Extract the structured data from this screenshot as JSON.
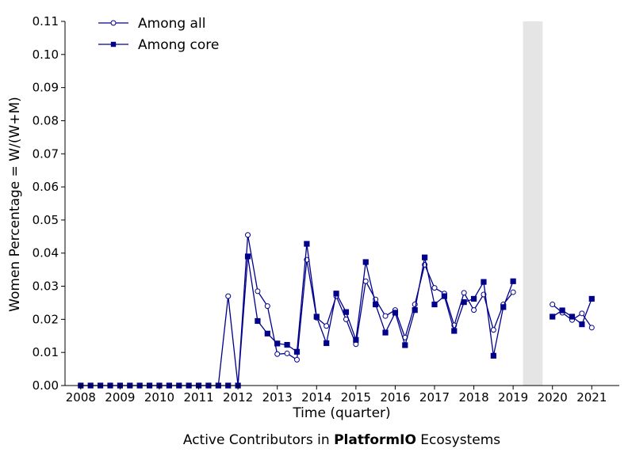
{
  "caption": {
    "prefix": "Active Contributors in ",
    "project": "PlatformIO",
    "suffix": " Ecosystems"
  },
  "chart_data": {
    "type": "line",
    "xlabel": "Time (quarter)",
    "ylabel": "Women Percentage = W/(W+M)",
    "xlim": [
      2007.6,
      2021.7
    ],
    "ylim": [
      0,
      0.11
    ],
    "x_ticks": [
      2008,
      2009,
      2010,
      2011,
      2012,
      2013,
      2014,
      2015,
      2016,
      2017,
      2018,
      2019,
      2020,
      2021
    ],
    "y_ticks": [
      0.0,
      0.01,
      0.02,
      0.03,
      0.04,
      0.05,
      0.06,
      0.07,
      0.08,
      0.09,
      0.1,
      0.11
    ],
    "shaded_span": [
      2019.25,
      2019.75
    ],
    "grid": false,
    "legend_position": "top-left",
    "line_color": "#00008b",
    "shade_color": "#e5e5e5",
    "series": [
      {
        "name": "Among all",
        "marker": "circle-open",
        "segments": [
          {
            "x": [
              2008.0,
              2008.25,
              2008.5,
              2008.75,
              2009.0,
              2009.25,
              2009.5,
              2009.75,
              2010.0,
              2010.25,
              2010.5,
              2010.75,
              2011.0,
              2011.25,
              2011.5,
              2011.75,
              2012.0,
              2012.25,
              2012.5,
              2012.75,
              2013.0,
              2013.25,
              2013.5,
              2013.75,
              2014.0,
              2014.25,
              2014.5,
              2014.75,
              2015.0,
              2015.25,
              2015.5,
              2015.75,
              2016.0,
              2016.25,
              2016.5,
              2016.75,
              2017.0,
              2017.25,
              2017.5,
              2017.75,
              2018.0,
              2018.25,
              2018.5,
              2018.75,
              2019.0
            ],
            "y": [
              0,
              0,
              0,
              0,
              0,
              0,
              0,
              0,
              0,
              0,
              0,
              0,
              0,
              0,
              0,
              0.027,
              0,
              0.0455,
              0.0285,
              0.024,
              0.0095,
              0.0097,
              0.0078,
              0.038,
              0.0205,
              0.018,
              0.027,
              0.02,
              0.0125,
              0.0315,
              0.026,
              0.021,
              0.0228,
              0.0145,
              0.0245,
              0.0365,
              0.0295,
              0.0278,
              0.0182,
              0.028,
              0.0228,
              0.0275,
              0.0168,
              0.0245,
              0.0282
            ]
          },
          {
            "x": [
              2020.0,
              2020.25,
              2020.5,
              2020.75,
              2021.0
            ],
            "y": [
              0.0245,
              0.022,
              0.0198,
              0.0218,
              0.0175
            ]
          }
        ]
      },
      {
        "name": "Among core",
        "marker": "square-filled",
        "segments": [
          {
            "x": [
              2008.0,
              2008.25,
              2008.5,
              2008.75,
              2009.0,
              2009.25,
              2009.5,
              2009.75,
              2010.0,
              2010.25,
              2010.5,
              2010.75,
              2011.0,
              2011.25,
              2011.5,
              2011.75,
              2012.0,
              2012.25,
              2012.5,
              2012.75,
              2013.0,
              2013.25,
              2013.5,
              2013.75,
              2014.0,
              2014.25,
              2014.5,
              2014.75,
              2015.0,
              2015.25,
              2015.5,
              2015.75,
              2016.0,
              2016.25,
              2016.5,
              2016.75,
              2017.0,
              2017.25,
              2017.5,
              2017.75,
              2018.0,
              2018.25,
              2018.5,
              2018.75,
              2019.0
            ],
            "y": [
              0,
              0,
              0,
              0,
              0,
              0,
              0,
              0,
              0,
              0,
              0,
              0,
              0,
              0,
              0,
              0,
              0,
              0.039,
              0.0195,
              0.0157,
              0.0127,
              0.0123,
              0.0102,
              0.0428,
              0.0208,
              0.0128,
              0.0278,
              0.0222,
              0.0138,
              0.0373,
              0.0245,
              0.016,
              0.022,
              0.0122,
              0.0228,
              0.0387,
              0.0245,
              0.027,
              0.0165,
              0.0252,
              0.0262,
              0.0313,
              0.009,
              0.0237,
              0.0315
            ]
          },
          {
            "x": [
              2020.0,
              2020.25,
              2020.5,
              2020.75,
              2021.0
            ],
            "y": [
              0.0208,
              0.0227,
              0.0208,
              0.0185,
              0.0262
            ]
          }
        ]
      }
    ]
  }
}
